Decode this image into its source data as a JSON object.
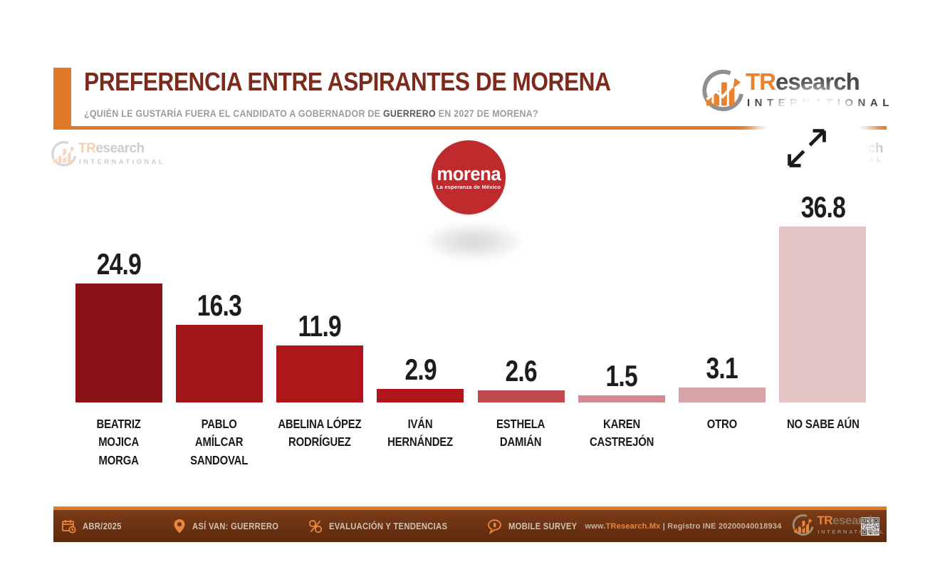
{
  "header": {
    "title": "PREFERENCIA ENTRE ASPIRANTES DE MORENA",
    "subtitle_prefix": "¿QUIÉN LE GUSTARÍA FUERA EL CANDIDATO A GOBERNADOR DE ",
    "subtitle_highlight": "GUERRERO",
    "subtitle_suffix": " EN 2027 DE MORENA?"
  },
  "brand": {
    "name_tr": "TR",
    "name_rest": "esearch",
    "subname": "INTERNATIONAL"
  },
  "watermark_right": {
    "line1": "earch",
    "line2": "ATIONAL"
  },
  "morena": {
    "name": "morena",
    "tagline": "La esperanza de México"
  },
  "chart_data": {
    "type": "bar",
    "title": "PREFERENCIA ENTRE ASPIRANTES DE MORENA",
    "categories": [
      "BEATRIZ MOJICA\nMORGA",
      "PABLO AMÍLCAR\nSANDOVAL",
      "ABELINA LÓPEZ\nRODRÍGUEZ",
      "IVÁN\nHERNÁNDEZ",
      "ESTHELA\nDAMIÁN",
      "KAREN\nCASTREJÓN",
      "OTRO",
      "NO SABE AÚN"
    ],
    "values": [
      24.9,
      16.3,
      11.9,
      2.9,
      2.6,
      1.5,
      3.1,
      36.8
    ],
    "colors": [
      "#8C1116",
      "#A5161B",
      "#AF161A",
      "#B0151A",
      "#C04A4F",
      "#D28C91",
      "#D7A3A7",
      "#E5C4C7"
    ],
    "xlabel": "",
    "ylabel": "",
    "ylim": [
      0,
      40
    ],
    "grid": false,
    "legend": false,
    "value_labels": "above bars, one decimal"
  },
  "footer": {
    "items": [
      {
        "icon": "calendar-clock-icon",
        "label": "ABR/2025"
      },
      {
        "icon": "map-pin-icon",
        "label": "ASÍ VAN: GUERRERO"
      },
      {
        "icon": "faces-icon",
        "label": "EVALUACIÓN Y TENDENCIAS"
      },
      {
        "icon": "chat-bubble-icon",
        "label": "MOBILE SURVEY"
      }
    ],
    "website_prefix": "www.",
    "website_brand": "TResearch.Mx",
    "registro": " | Registro INE 20200040018934"
  },
  "colors": {
    "accent_orange": "#DF7A2B",
    "title_maroon": "#7B2A1C",
    "footer_bg": "#6E3413",
    "morena_red": "#BF2A2C"
  }
}
